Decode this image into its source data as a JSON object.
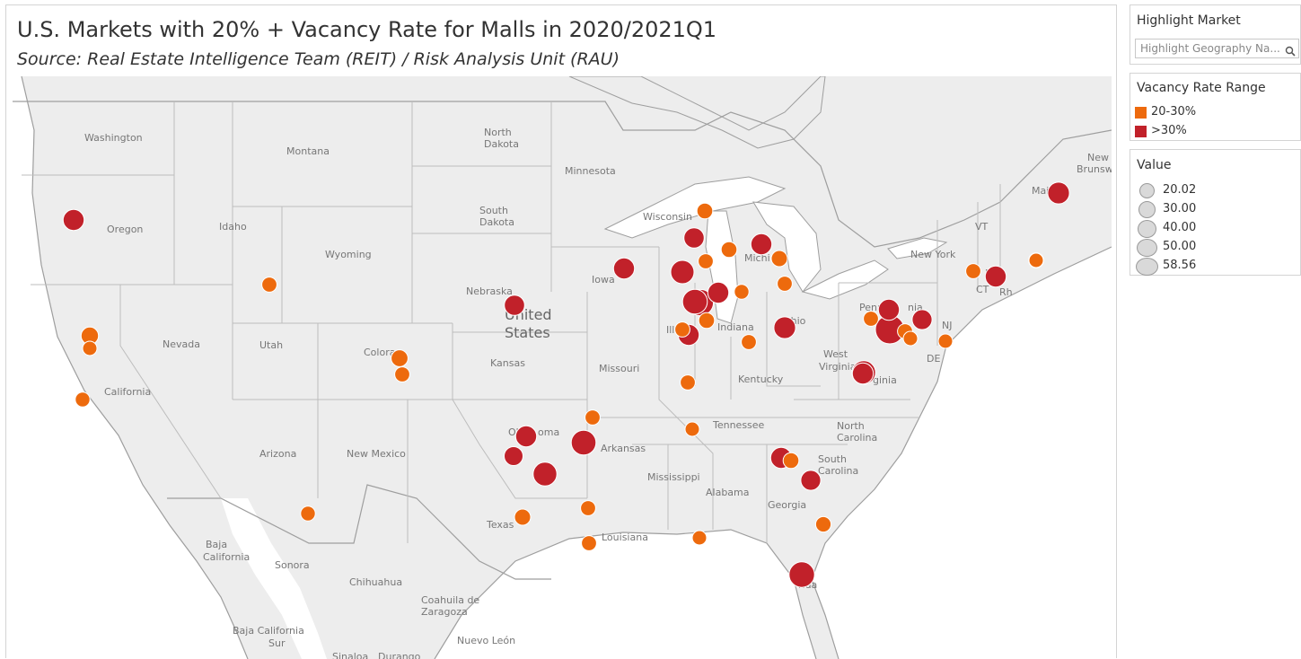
{
  "title": "U.S. Markets with 20% + Vacancy Rate for Malls in 2020/2021Q1",
  "subtitle": "Source: Real Estate Intelligence Team (REIT) / Risk Analysis Unit (RAU)",
  "highlight": {
    "title": "Highlight Market",
    "placeholder": "Highlight Geography Na..."
  },
  "range_legend": {
    "title": "Vacancy Rate Range",
    "items": [
      {
        "label": "20-30%",
        "color": "#ed6a0d"
      },
      {
        "label": ">30%",
        "color": "#c1212a"
      }
    ]
  },
  "value_legend": {
    "title": "Value",
    "items": [
      "20.02",
      "30.00",
      "40.00",
      "50.00",
      "58.56"
    ]
  },
  "map_labels": [
    {
      "text": "Washington",
      "big": false
    },
    {
      "text": "Montana",
      "big": false
    },
    {
      "text": "North",
      "big": false
    },
    {
      "text": "Dakota",
      "big": false
    },
    {
      "text": "Minnesota",
      "big": false
    },
    {
      "text": "Oregon",
      "big": false
    },
    {
      "text": "Idaho",
      "big": false
    },
    {
      "text": "South",
      "big": false
    },
    {
      "text": "Dakota",
      "big": false
    },
    {
      "text": "Wisconsin",
      "big": false
    },
    {
      "text": "Wyoming",
      "big": false
    },
    {
      "text": "Michi",
      "big": false
    },
    {
      "text": "New York",
      "big": false
    },
    {
      "text": "Nebraska",
      "big": false
    },
    {
      "text": "Iowa",
      "big": false
    },
    {
      "text": "United",
      "big": true
    },
    {
      "text": "States",
      "big": true
    },
    {
      "text": "Nevada",
      "big": false
    },
    {
      "text": "Utah",
      "big": false
    },
    {
      "text": "Colora",
      "big": false
    },
    {
      "text": "Kansas",
      "big": false
    },
    {
      "text": "Missouri",
      "big": false
    },
    {
      "text": "Illi",
      "big": false
    },
    {
      "text": "Indiana",
      "big": false
    },
    {
      "text": "Ohio",
      "big": false
    },
    {
      "text": "Pennsyl",
      "big": false
    },
    {
      "text": "nia",
      "big": false
    },
    {
      "text": "West",
      "big": false
    },
    {
      "text": "Virginia",
      "big": false
    },
    {
      "text": "ginia",
      "big": false
    },
    {
      "text": "California",
      "big": false
    },
    {
      "text": "Kentucky",
      "big": false
    },
    {
      "text": "Tennessee",
      "big": false
    },
    {
      "text": "North",
      "big": false
    },
    {
      "text": "Carolina",
      "big": false
    },
    {
      "text": "Arizona",
      "big": false
    },
    {
      "text": "New Mexico",
      "big": false
    },
    {
      "text": "Okla",
      "big": false
    },
    {
      "text": "oma",
      "big": false
    },
    {
      "text": "Arkansas",
      "big": false
    },
    {
      "text": "South",
      "big": false
    },
    {
      "text": "Carolina",
      "big": false
    },
    {
      "text": "Mississippi",
      "big": false
    },
    {
      "text": "Alabama",
      "big": false
    },
    {
      "text": "Georgia",
      "big": false
    },
    {
      "text": "Texas",
      "big": false
    },
    {
      "text": "Louisiana",
      "big": false
    },
    {
      "text": "Baja",
      "big": false
    },
    {
      "text": "California",
      "big": false
    },
    {
      "text": "Sonora",
      "big": false
    },
    {
      "text": "Chihuahua",
      "big": false
    },
    {
      "text": "Coahuila de",
      "big": false
    },
    {
      "text": "Zaragoza",
      "big": false
    },
    {
      "text": "rida",
      "big": false
    },
    {
      "text": "Baja California",
      "big": false
    },
    {
      "text": "Sur",
      "big": false
    },
    {
      "text": "Nuevo León",
      "big": false
    },
    {
      "text": "Sinaloa",
      "big": false
    },
    {
      "text": "Durango",
      "big": false
    },
    {
      "text": "VT",
      "big": false
    },
    {
      "text": "CT",
      "big": false
    },
    {
      "text": "Rh",
      "big": false
    },
    {
      "text": "Ma",
      "big": false
    },
    {
      "text": "Mai",
      "big": false
    },
    {
      "text": "New",
      "big": false
    },
    {
      "text": "Brunswic",
      "big": false
    },
    {
      "text": "NJ",
      "big": false
    },
    {
      "text": "DE",
      "big": false
    }
  ],
  "markers": [
    {
      "value": 38,
      "range": ">30%"
    },
    {
      "value": 22,
      "range": "20-30%"
    },
    {
      "value": 28,
      "range": "20-30%"
    },
    {
      "value": 20.02,
      "range": "20-30%"
    },
    {
      "value": 21,
      "range": "20-30%"
    },
    {
      "value": 27,
      "range": "20-30%"
    },
    {
      "value": 22,
      "range": "20-30%"
    },
    {
      "value": 21,
      "range": "20-30%"
    },
    {
      "value": 36,
      "range": ">30%"
    },
    {
      "value": 38,
      "range": ">30%"
    },
    {
      "value": 24,
      "range": "20-30%"
    },
    {
      "value": 36,
      "range": ">30%"
    },
    {
      "value": 44,
      "range": ">30%"
    },
    {
      "value": 48,
      "range": ">30%"
    },
    {
      "value": 52,
      "range": ">30%"
    },
    {
      "value": 24,
      "range": "20-30%"
    },
    {
      "value": 24,
      "range": "20-30%"
    },
    {
      "value": 38,
      "range": ">30%"
    },
    {
      "value": 22,
      "range": "20-30%"
    },
    {
      "value": 21,
      "range": "20-30%"
    },
    {
      "value": 38,
      "range": ">30%"
    },
    {
      "value": 22,
      "range": "20-30%"
    },
    {
      "value": 25,
      "range": "20-30%"
    },
    {
      "value": 25,
      "range": "20-30%"
    },
    {
      "value": 45,
      "range": ">30%"
    },
    {
      "value": 22,
      "range": "20-30%"
    },
    {
      "value": 32,
      "range": ">30%"
    },
    {
      "value": 22,
      "range": "20-30%"
    },
    {
      "value": 48,
      "range": ">30%"
    },
    {
      "value": 38,
      "range": ">30%"
    },
    {
      "value": 22,
      "range": "20-30%"
    },
    {
      "value": 50,
      "range": ">30%"
    },
    {
      "value": 24,
      "range": "20-30%"
    },
    {
      "value": 38,
      "range": ">30%"
    },
    {
      "value": 35,
      "range": ">30%"
    },
    {
      "value": 23,
      "range": "20-30%"
    },
    {
      "value": 38,
      "range": ">30%"
    },
    {
      "value": 58.56,
      "range": ">30%"
    },
    {
      "value": 38,
      "range": ">30%"
    },
    {
      "value": 22,
      "range": "20-30%"
    },
    {
      "value": 45,
      "range": ">30%"
    },
    {
      "value": 22,
      "range": "20-30%"
    },
    {
      "value": 35,
      "range": ">30%"
    },
    {
      "value": 20.02,
      "range": "20-30%"
    },
    {
      "value": 22,
      "range": "20-30%"
    },
    {
      "value": 38,
      "range": ">30%"
    },
    {
      "value": 40,
      "range": ">30%"
    },
    {
      "value": 22,
      "range": "20-30%"
    },
    {
      "value": 22,
      "range": "20-30%"
    },
    {
      "value": 20.02,
      "range": "20-30%"
    },
    {
      "value": 20.02,
      "range": "20-30%"
    },
    {
      "value": 20.02,
      "range": "20-30%"
    },
    {
      "value": 22,
      "range": "20-30%"
    },
    {
      "value": 38,
      "range": ">30%"
    },
    {
      "value": 22,
      "range": "20-30%"
    },
    {
      "value": 20.02,
      "range": "20-30%"
    },
    {
      "value": 20.02,
      "range": "20-30%"
    },
    {
      "value": 40,
      "range": ">30%"
    },
    {
      "value": 22,
      "range": "20-30%"
    },
    {
      "value": 20.02,
      "range": "20-30%"
    }
  ]
}
